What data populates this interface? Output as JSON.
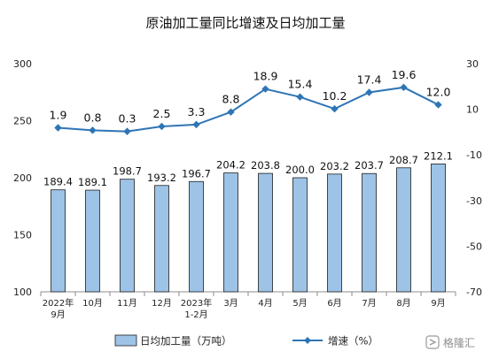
{
  "chart_data": {
    "type": "bar",
    "title": "原油加工量同比增速及日均加工量",
    "categories": [
      [
        "2022年",
        "9月"
      ],
      [
        "10月"
      ],
      [
        "11月"
      ],
      [
        "12月"
      ],
      [
        "2023年",
        "1-2月"
      ],
      [
        "3月"
      ],
      [
        "4月"
      ],
      [
        "5月"
      ],
      [
        "6月"
      ],
      [
        "7月"
      ],
      [
        "8月"
      ],
      [
        "9月"
      ]
    ],
    "series": [
      {
        "name": "日均加工量（万吨）",
        "type": "bar",
        "axis": "left",
        "values": [
          189.4,
          189.1,
          198.7,
          193.2,
          196.7,
          204.2,
          203.8,
          200.0,
          203.2,
          203.7,
          208.7,
          212.1
        ],
        "labels": [
          "189.4",
          "189.1",
          "198.7",
          "193.2",
          "196.7",
          "204.2",
          "203.8",
          "200.0",
          "203.2",
          "203.7",
          "208.7",
          "212.1"
        ],
        "color": "#9dc3e6"
      },
      {
        "name": "增速（%）",
        "type": "line",
        "axis": "right",
        "values": [
          1.9,
          0.8,
          0.3,
          2.5,
          3.3,
          8.8,
          18.9,
          15.4,
          10.2,
          17.4,
          19.6,
          12.0
        ],
        "labels": [
          "1.9",
          "0.8",
          "0.3",
          "2.5",
          "3.3",
          "8.8",
          "18.9",
          "15.4",
          "10.2",
          "17.4",
          "19.6",
          "12.0"
        ],
        "color": "#2e75b6"
      }
    ],
    "left_axis": {
      "ylim": [
        100,
        300
      ],
      "ticks": [
        "100",
        "150",
        "200",
        "250",
        "300"
      ]
    },
    "right_axis": {
      "ylim": [
        -70,
        30
      ],
      "ticks": [
        "-70",
        "-50",
        "-30",
        "-10",
        "10",
        "30"
      ]
    },
    "grid": false,
    "legend_position": "bottom"
  },
  "watermark": {
    "text": "格隆汇"
  }
}
